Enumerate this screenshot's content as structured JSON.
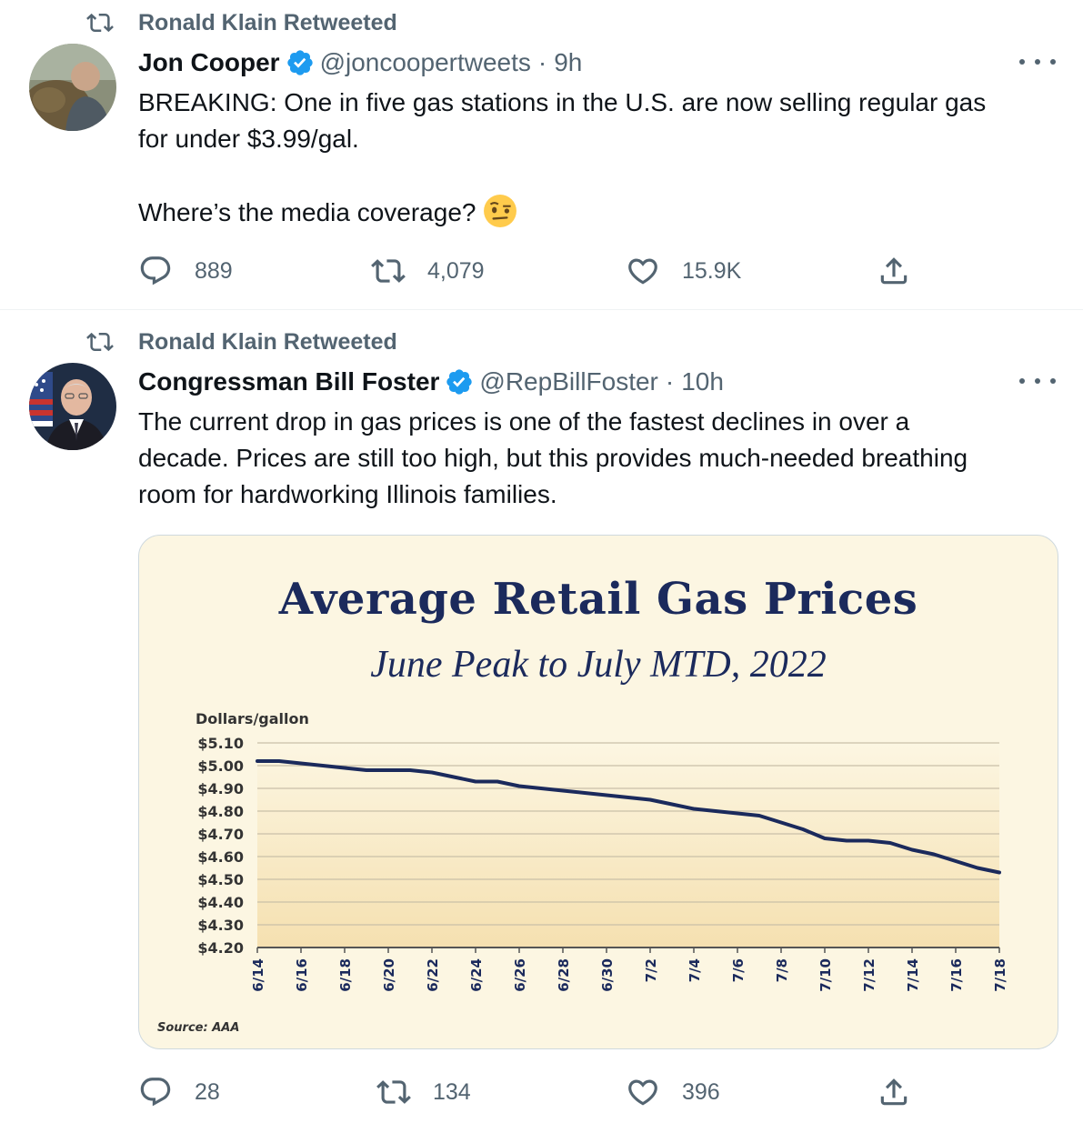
{
  "colors": {
    "text_primary": "#0f1419",
    "text_secondary": "#536471",
    "verified": "#1d9bf0",
    "chart_line": "#1b2a5c",
    "chart_bg": "#fcf6e2"
  },
  "tweets": [
    {
      "retweeted_by": "Ronald Klain Retweeted",
      "author_name": "Jon Cooper",
      "handle": "@joncoopertweets",
      "separator": "·",
      "time": "9h",
      "text_lines": [
        "BREAKING: One in five gas stations in the U.S. are now selling regular gas",
        "for under $3.99/gal.",
        "",
        "Where’s the media coverage?"
      ],
      "emoji": "face-with-raised-eyebrow-emoji",
      "replies": "889",
      "retweets": "4,079",
      "likes": "15.9K"
    },
    {
      "retweeted_by": "Ronald Klain Retweeted",
      "author_name": "Congressman Bill Foster",
      "handle": "@RepBillFoster",
      "separator": "·",
      "time": "10h",
      "text_lines": [
        "The current drop in gas prices is one of the fastest declines in over a",
        "decade. Prices are still too high, but this provides much-needed breathing",
        "room for hardworking Illinois families."
      ],
      "replies": "28",
      "retweets": "134",
      "likes": "396"
    }
  ],
  "chart_data": {
    "type": "line",
    "title": "Average Retail Gas Prices",
    "subtitle": "June Peak to July MTD, 2022",
    "ylabel": "Dollars/gallon",
    "source": "Source: AAA",
    "ylim": [
      4.2,
      5.1
    ],
    "yticks": [
      5.1,
      5.0,
      4.9,
      4.8,
      4.7,
      4.6,
      4.5,
      4.4,
      4.3,
      4.2
    ],
    "ytick_labels": [
      "$5.10",
      "$5.00",
      "$4.90",
      "$4.80",
      "$4.70",
      "$4.60",
      "$4.50",
      "$4.40",
      "$4.30",
      "$4.20"
    ],
    "xtick_labels": [
      "6/14",
      "6/16",
      "6/18",
      "6/20",
      "6/22",
      "6/24",
      "6/26",
      "6/28",
      "6/30",
      "7/2",
      "7/4",
      "7/6",
      "7/8",
      "7/10",
      "7/12",
      "7/14",
      "7/16",
      "7/18"
    ],
    "grid": true,
    "series": [
      {
        "x": [
          "6/14",
          "6/15",
          "6/16",
          "6/17",
          "6/18",
          "6/19",
          "6/20",
          "6/21",
          "6/22",
          "6/23",
          "6/24",
          "6/25",
          "6/26",
          "6/27",
          "6/28",
          "6/29",
          "6/30",
          "7/1",
          "7/2",
          "7/3",
          "7/4",
          "7/5",
          "7/6",
          "7/7",
          "7/8",
          "7/9",
          "7/10",
          "7/11",
          "7/12",
          "7/13",
          "7/14",
          "7/15",
          "7/16",
          "7/17",
          "7/18"
        ],
        "values": [
          5.02,
          5.02,
          5.01,
          5.0,
          4.99,
          4.98,
          4.98,
          4.98,
          4.97,
          4.95,
          4.93,
          4.93,
          4.91,
          4.9,
          4.89,
          4.88,
          4.87,
          4.86,
          4.85,
          4.83,
          4.81,
          4.8,
          4.79,
          4.78,
          4.75,
          4.72,
          4.68,
          4.67,
          4.67,
          4.66,
          4.63,
          4.61,
          4.58,
          4.55,
          4.53
        ]
      }
    ]
  }
}
